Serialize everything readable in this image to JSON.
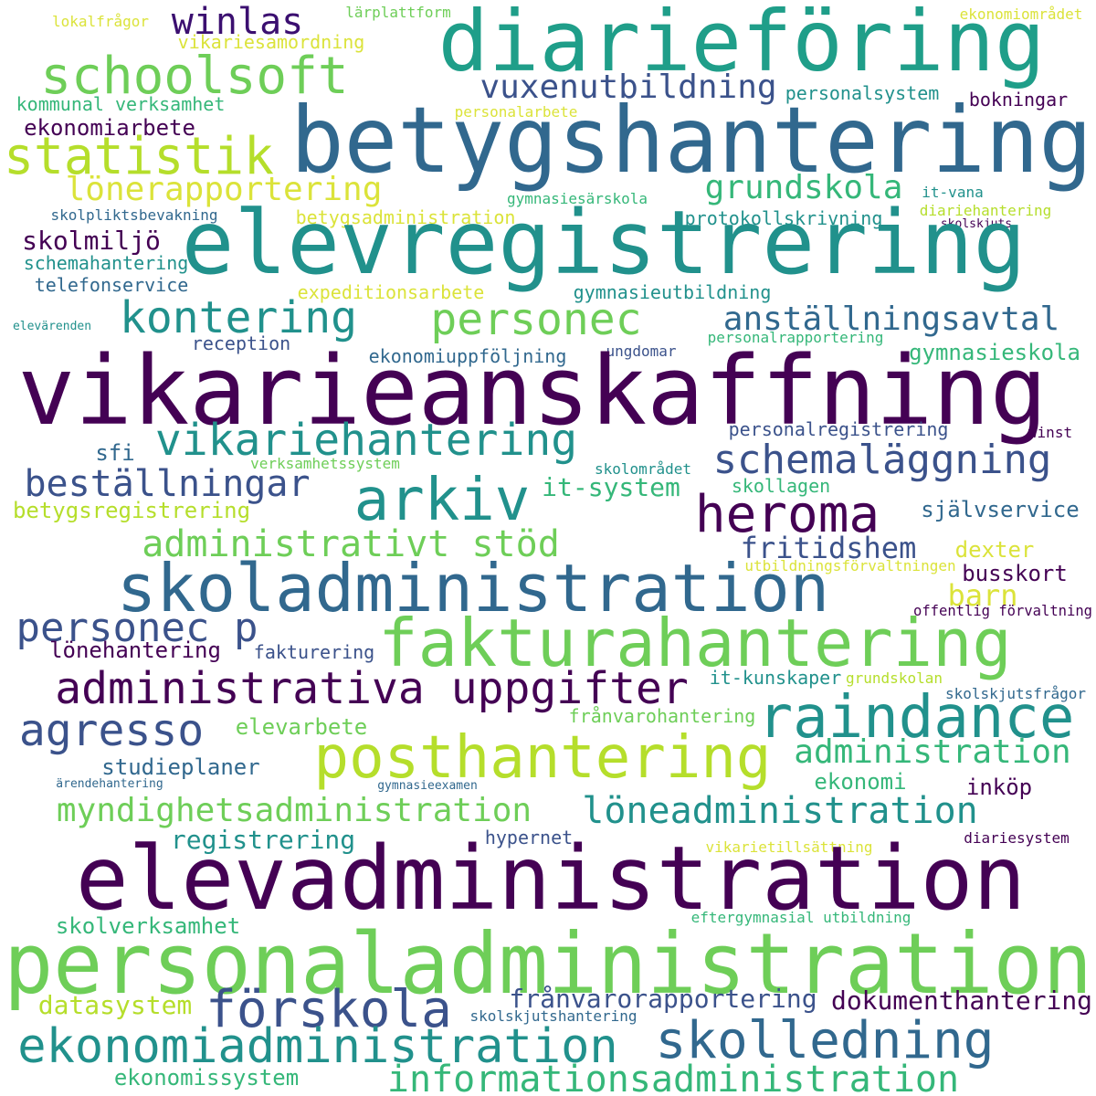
{
  "palette": {
    "background": "#ffffff",
    "dark_purple": "#440154",
    "indigo": "#3b528b",
    "blue": "#31688e",
    "teal": "#21918c",
    "green": "#35b779",
    "light_green": "#6ece58",
    "yellow_green": "#b5de2b",
    "yellow": "#dbe33a"
  },
  "words": [
    {
      "text": "lokalfrågor"
    },
    {
      "text": "winlas"
    },
    {
      "text": "lärplattform"
    },
    {
      "text": "diarieföring"
    },
    {
      "text": "ekonomiområdet"
    },
    {
      "text": "vikariesamordning"
    },
    {
      "text": "schoolsoft"
    },
    {
      "text": "vuxenutbildning"
    },
    {
      "text": "kommunal verksamhet"
    },
    {
      "text": "personalsystem"
    },
    {
      "text": "personalarbete"
    },
    {
      "text": "bokningar"
    },
    {
      "text": "ekonomiarbete"
    },
    {
      "text": "betygshantering"
    },
    {
      "text": "statistik"
    },
    {
      "text": "lönerapportering"
    },
    {
      "text": "grundskola"
    },
    {
      "text": "gymnasiesärskola"
    },
    {
      "text": "it-vana"
    },
    {
      "text": "skolpliktsbevakning"
    },
    {
      "text": "betygsadministration"
    },
    {
      "text": "protokollskrivning"
    },
    {
      "text": "diariehantering"
    },
    {
      "text": "skolskjuts"
    },
    {
      "text": "elevregistrering"
    },
    {
      "text": "skolmiljö"
    },
    {
      "text": "schemahantering"
    },
    {
      "text": "telefonservice"
    },
    {
      "text": "expeditionsarbete"
    },
    {
      "text": "gymnasieutbildning"
    },
    {
      "text": "kontering"
    },
    {
      "text": "personec"
    },
    {
      "text": "anställningsavtal"
    },
    {
      "text": "elevärenden"
    },
    {
      "text": "reception"
    },
    {
      "text": "personalrapportering"
    },
    {
      "text": "gymnasieskola"
    },
    {
      "text": "ekonomiuppföljning"
    },
    {
      "text": "ungdomar"
    },
    {
      "text": "vikarieanskaffning"
    },
    {
      "text": "personalregistrering"
    },
    {
      "text": "winst"
    },
    {
      "text": "vikariehantering"
    },
    {
      "text": "sfi"
    },
    {
      "text": "schemaläggning"
    },
    {
      "text": "verksamhetssystem"
    },
    {
      "text": "skolområdet"
    },
    {
      "text": "beställningar"
    },
    {
      "text": "it-system"
    },
    {
      "text": "skollagen"
    },
    {
      "text": "arkiv"
    },
    {
      "text": "heroma"
    },
    {
      "text": "betygsregistrering"
    },
    {
      "text": "självservice"
    },
    {
      "text": "administrativt stöd"
    },
    {
      "text": "fritidshem"
    },
    {
      "text": "dexter"
    },
    {
      "text": "utbildningsförvaltningen"
    },
    {
      "text": "skoladministration"
    },
    {
      "text": "busskort"
    },
    {
      "text": "barn"
    },
    {
      "text": "offentlig förvaltning"
    },
    {
      "text": "personec p"
    },
    {
      "text": "fakturahantering"
    },
    {
      "text": "lönehantering"
    },
    {
      "text": "fakturering"
    },
    {
      "text": "it-kunskaper"
    },
    {
      "text": "grundskolan"
    },
    {
      "text": "administrativa uppgifter"
    },
    {
      "text": "raindance"
    },
    {
      "text": "skolskjutsfrågor"
    },
    {
      "text": "frånvarohantering"
    },
    {
      "text": "agresso"
    },
    {
      "text": "elevarbete"
    },
    {
      "text": "administration"
    },
    {
      "text": "posthantering"
    },
    {
      "text": "studieplaner"
    },
    {
      "text": "ekonomi"
    },
    {
      "text": "ärendehantering"
    },
    {
      "text": "gymnasieexamen"
    },
    {
      "text": "inköp"
    },
    {
      "text": "myndighetsadministration"
    },
    {
      "text": "löneadministration"
    },
    {
      "text": "registrering"
    },
    {
      "text": "hypernet"
    },
    {
      "text": "vikarietillsättning"
    },
    {
      "text": "diariesystem"
    },
    {
      "text": "elevadministration"
    },
    {
      "text": "skolverksamhet"
    },
    {
      "text": "eftergymnasial utbildning"
    },
    {
      "text": "personaladministration"
    },
    {
      "text": "frånvarorapportering"
    },
    {
      "text": "dokumenthantering"
    },
    {
      "text": "datasystem"
    },
    {
      "text": "förskola"
    },
    {
      "text": "skolskjutshantering"
    },
    {
      "text": "skolledning"
    },
    {
      "text": "ekonomiadministration"
    },
    {
      "text": "ekonomissystem"
    },
    {
      "text": "informationsadministration"
    }
  ]
}
